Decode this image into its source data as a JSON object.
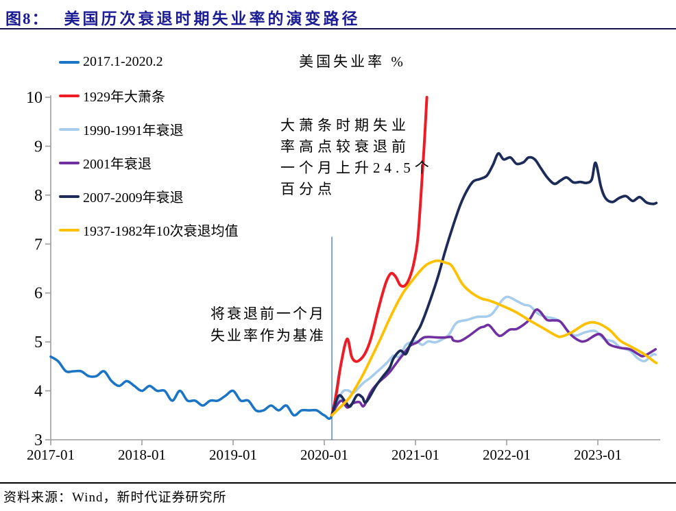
{
  "header": {
    "title_prefix": "图8：",
    "title": "美国历次衰退时期失业率的演变路径"
  },
  "footer": {
    "text": "资料来源：Wind，新时代证券研究所"
  },
  "colors": {
    "title_accent": "#1b1b96",
    "axis": "#9c9c9c",
    "baseline_marker": "#4472c4"
  },
  "chart_data": {
    "type": "line",
    "title": "美国失业率 %",
    "x_axis_note": "months since 2017-01; recession series re-based so the month before each recession equals the Feb-2020 rate of 3.5",
    "x_tick_labels": [
      "2017-01",
      "2018-01",
      "2019-01",
      "2020-01",
      "2021-01",
      "2022-01",
      "2023-01"
    ],
    "x_tick_months": [
      0,
      12,
      24,
      36,
      48,
      60,
      72
    ],
    "y_ticks": [
      3,
      4,
      5,
      6,
      7,
      8,
      9,
      10
    ],
    "ylim": [
      3,
      10
    ],
    "grid": false,
    "legend_position": "upper-left-vertical",
    "baseline_marker": {
      "month": 37,
      "value_from": 3.0,
      "value_to": 7.15
    },
    "annotations": [
      {
        "lines": [
          "大萧条时期失业",
          "率高点较衰退前",
          "一个月上升24.5个",
          "百分点"
        ]
      },
      {
        "lines": [
          "将衰退前一个月",
          "失业率作为基准"
        ]
      }
    ],
    "series": [
      {
        "name": "2017.1-2020.2",
        "color": "#1b74c4",
        "width": 3.6,
        "points": [
          [
            0,
            4.7
          ],
          [
            1,
            4.6
          ],
          [
            2,
            4.4
          ],
          [
            3,
            4.4
          ],
          [
            4,
            4.4
          ],
          [
            5,
            4.3
          ],
          [
            6,
            4.3
          ],
          [
            7,
            4.4
          ],
          [
            8,
            4.2
          ],
          [
            9,
            4.1
          ],
          [
            10,
            4.2
          ],
          [
            11,
            4.1
          ],
          [
            12,
            4.0
          ],
          [
            13,
            4.1
          ],
          [
            14,
            4.0
          ],
          [
            15,
            4.0
          ],
          [
            16,
            3.8
          ],
          [
            17,
            4.0
          ],
          [
            18,
            3.8
          ],
          [
            19,
            3.8
          ],
          [
            20,
            3.7
          ],
          [
            21,
            3.8
          ],
          [
            22,
            3.8
          ],
          [
            23,
            3.9
          ],
          [
            24,
            4.0
          ],
          [
            25,
            3.8
          ],
          [
            26,
            3.8
          ],
          [
            27,
            3.6
          ],
          [
            28,
            3.6
          ],
          [
            29,
            3.7
          ],
          [
            30,
            3.6
          ],
          [
            31,
            3.7
          ],
          [
            32,
            3.5
          ],
          [
            33,
            3.6
          ],
          [
            34,
            3.6
          ],
          [
            35,
            3.6
          ],
          [
            36,
            3.5
          ],
          [
            37,
            3.5
          ],
          [
            38,
            4.4
          ]
        ]
      },
      {
        "name": "1929年大萧条",
        "color": "#ee1c25",
        "width": 4,
        "points": [
          [
            37,
            3.5
          ],
          [
            37.6,
            3.95
          ],
          [
            38.2,
            4.55
          ],
          [
            39,
            5.06
          ],
          [
            39.6,
            4.7
          ],
          [
            40.2,
            4.6
          ],
          [
            41,
            4.68
          ],
          [
            41.6,
            4.84
          ],
          [
            42.2,
            5.1
          ],
          [
            43,
            5.6
          ],
          [
            43.6,
            5.95
          ],
          [
            44.2,
            6.25
          ],
          [
            44.8,
            6.4
          ],
          [
            45.4,
            6.33
          ],
          [
            46,
            6.16
          ],
          [
            46.6,
            6.15
          ],
          [
            47.2,
            6.3
          ],
          [
            47.8,
            6.62
          ],
          [
            48.3,
            7.1
          ],
          [
            48.7,
            7.95
          ],
          [
            49.1,
            8.9
          ],
          [
            49.5,
            10.0
          ]
        ]
      },
      {
        "name": "1990-1991年衰退",
        "color": "#a8ccec",
        "width": 3.6,
        "points": [
          [
            37,
            3.5
          ],
          [
            37.7,
            3.75
          ],
          [
            38.4,
            3.98
          ],
          [
            39.1,
            4.01
          ],
          [
            39.8,
            3.96
          ],
          [
            40.5,
            4.06
          ],
          [
            41.2,
            4.17
          ],
          [
            42,
            4.26
          ],
          [
            42.8,
            4.37
          ],
          [
            43.6,
            4.48
          ],
          [
            44.4,
            4.6
          ],
          [
            45.1,
            4.72
          ],
          [
            45.9,
            4.7
          ],
          [
            46.7,
            4.93
          ],
          [
            47.4,
            4.99
          ],
          [
            48.2,
            5.01
          ],
          [
            48.9,
            4.94
          ],
          [
            49.7,
            5.01
          ],
          [
            50.6,
            4.99
          ],
          [
            51.5,
            5.05
          ],
          [
            52.4,
            5.15
          ],
          [
            53.4,
            5.39
          ],
          [
            54.8,
            5.45
          ],
          [
            56.1,
            5.51
          ],
          [
            57.9,
            5.55
          ],
          [
            59.4,
            5.85
          ],
          [
            60.2,
            5.92
          ],
          [
            61.4,
            5.83
          ],
          [
            62.3,
            5.76
          ],
          [
            63.1,
            5.73
          ],
          [
            64.1,
            5.58
          ],
          [
            65.2,
            5.51
          ],
          [
            66.2,
            5.48
          ],
          [
            67.1,
            5.41
          ],
          [
            67.9,
            5.25
          ],
          [
            69,
            5.13
          ],
          [
            70.4,
            5.2
          ],
          [
            71.7,
            5.22
          ],
          [
            72.8,
            5.06
          ],
          [
            74,
            5.01
          ],
          [
            74.9,
            4.89
          ],
          [
            76.2,
            4.82
          ],
          [
            77.3,
            4.66
          ],
          [
            78.2,
            4.61
          ],
          [
            79.2,
            4.74
          ],
          [
            79.6,
            4.74
          ]
        ]
      },
      {
        "name": "2001年衰退",
        "color": "#7030a0",
        "width": 3.6,
        "points": [
          [
            37,
            3.5
          ],
          [
            37.6,
            3.69
          ],
          [
            38.3,
            3.8
          ],
          [
            39,
            3.66
          ],
          [
            39.7,
            3.74
          ],
          [
            40.6,
            3.77
          ],
          [
            41.2,
            3.69
          ],
          [
            42.1,
            3.97
          ],
          [
            43,
            4.15
          ],
          [
            44,
            4.29
          ],
          [
            44.7,
            4.4
          ],
          [
            45.5,
            4.57
          ],
          [
            46.4,
            4.75
          ],
          [
            47.3,
            4.92
          ],
          [
            48.2,
            4.99
          ],
          [
            49.1,
            5.09
          ],
          [
            50,
            5.1
          ],
          [
            50.9,
            5.09
          ],
          [
            51.8,
            5.09
          ],
          [
            52.7,
            5.1
          ],
          [
            53,
            5.03
          ],
          [
            53.9,
            5.02
          ],
          [
            55,
            5.12
          ],
          [
            56.4,
            5.28
          ],
          [
            57,
            5.31
          ],
          [
            57.7,
            5.34
          ],
          [
            58.7,
            5.16
          ],
          [
            59.3,
            5.13
          ],
          [
            60.4,
            5.25
          ],
          [
            61.4,
            5.27
          ],
          [
            62.9,
            5.44
          ],
          [
            63.8,
            5.65
          ],
          [
            64.4,
            5.62
          ],
          [
            65.3,
            5.45
          ],
          [
            66.2,
            5.44
          ],
          [
            67.1,
            5.41
          ],
          [
            68.3,
            5.17
          ],
          [
            69.5,
            5.03
          ],
          [
            70.4,
            5.02
          ],
          [
            72.2,
            5.16
          ],
          [
            73.5,
            4.95
          ],
          [
            74.9,
            4.88
          ],
          [
            76.2,
            4.85
          ],
          [
            77.3,
            4.75
          ],
          [
            78,
            4.71
          ],
          [
            79.2,
            4.81
          ],
          [
            79.6,
            4.85
          ]
        ]
      },
      {
        "name": "2007-2009年衰退",
        "color": "#1c2b57",
        "width": 3.8,
        "points": [
          [
            37,
            3.5
          ],
          [
            37.9,
            3.9
          ],
          [
            38.8,
            3.77
          ],
          [
            39.4,
            3.68
          ],
          [
            40.3,
            3.91
          ],
          [
            41,
            3.87
          ],
          [
            41.5,
            3.77
          ],
          [
            42.8,
            4.1
          ],
          [
            43.7,
            4.29
          ],
          [
            44.6,
            4.47
          ],
          [
            45.1,
            4.66
          ],
          [
            46,
            4.82
          ],
          [
            46.7,
            4.75
          ],
          [
            47.3,
            4.94
          ],
          [
            48.2,
            5.2
          ],
          [
            48.7,
            5.34
          ],
          [
            49.6,
            5.7
          ],
          [
            50.9,
            6.3
          ],
          [
            51.9,
            6.85
          ],
          [
            52.9,
            7.35
          ],
          [
            53.9,
            7.8
          ],
          [
            54.8,
            8.1
          ],
          [
            55.6,
            8.28
          ],
          [
            56.5,
            8.33
          ],
          [
            57.4,
            8.4
          ],
          [
            58.2,
            8.62
          ],
          [
            58.9,
            8.85
          ],
          [
            59.6,
            8.73
          ],
          [
            60.5,
            8.77
          ],
          [
            61.3,
            8.64
          ],
          [
            62.2,
            8.67
          ],
          [
            62.9,
            8.77
          ],
          [
            63.7,
            8.73
          ],
          [
            64.5,
            8.55
          ],
          [
            65.4,
            8.35
          ],
          [
            66.3,
            8.23
          ],
          [
            67.1,
            8.3
          ],
          [
            67.9,
            8.36
          ],
          [
            68.8,
            8.26
          ],
          [
            69.7,
            8.27
          ],
          [
            70.5,
            8.25
          ],
          [
            71.2,
            8.32
          ],
          [
            71.7,
            8.66
          ],
          [
            72.4,
            8.18
          ],
          [
            73,
            7.94
          ],
          [
            73.9,
            7.86
          ],
          [
            74.8,
            7.94
          ],
          [
            75.7,
            7.98
          ],
          [
            76.6,
            7.88
          ],
          [
            77.5,
            7.96
          ],
          [
            78.4,
            7.85
          ],
          [
            79.3,
            7.82
          ],
          [
            79.7,
            7.84
          ]
        ]
      },
      {
        "name": "1937-1982年10次衰退均值",
        "color": "#ffc000",
        "width": 3.8,
        "points": [
          [
            37,
            3.5
          ],
          [
            37.8,
            3.62
          ],
          [
            38.6,
            3.74
          ],
          [
            39.4,
            3.88
          ],
          [
            40.3,
            4.11
          ],
          [
            41.2,
            4.36
          ],
          [
            42.3,
            4.71
          ],
          [
            43.3,
            5.03
          ],
          [
            44.4,
            5.41
          ],
          [
            45.5,
            5.76
          ],
          [
            46.4,
            6.01
          ],
          [
            47.4,
            6.22
          ],
          [
            48.5,
            6.43
          ],
          [
            49.4,
            6.57
          ],
          [
            50.3,
            6.64
          ],
          [
            51,
            6.66
          ],
          [
            51.9,
            6.62
          ],
          [
            52.8,
            6.55
          ],
          [
            54.1,
            6.2
          ],
          [
            55,
            6.05
          ],
          [
            56,
            5.94
          ],
          [
            56.8,
            5.88
          ],
          [
            57.6,
            5.85
          ],
          [
            58.8,
            5.78
          ],
          [
            61.1,
            5.62
          ],
          [
            62.9,
            5.45
          ],
          [
            64.7,
            5.29
          ],
          [
            66.5,
            5.13
          ],
          [
            67.2,
            5.11
          ],
          [
            68.6,
            5.2
          ],
          [
            70.4,
            5.37
          ],
          [
            71.8,
            5.39
          ],
          [
            73.5,
            5.25
          ],
          [
            74.9,
            5.03
          ],
          [
            76.4,
            4.9
          ],
          [
            78,
            4.76
          ],
          [
            79.3,
            4.61
          ],
          [
            79.7,
            4.57
          ]
        ]
      }
    ]
  }
}
